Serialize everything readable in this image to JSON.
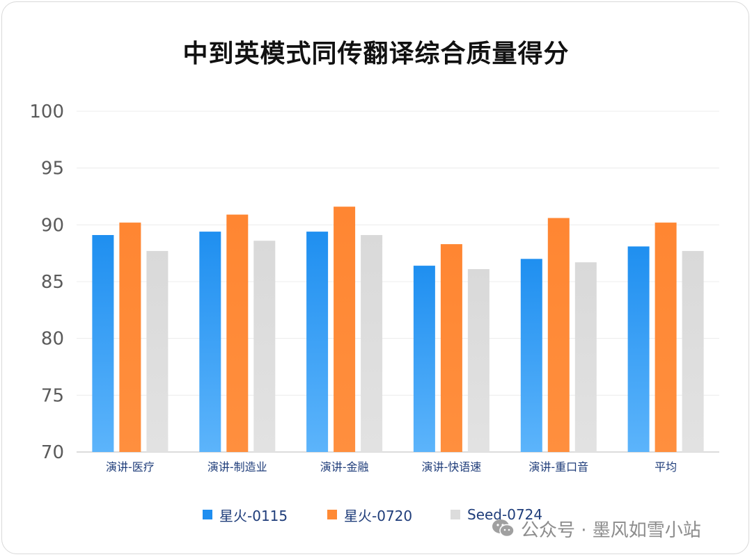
{
  "chart_data": {
    "type": "bar",
    "title": "中到英模式同传翻译综合质量得分",
    "categories": [
      "演讲-医疗",
      "演讲-制造业",
      "演讲-金融",
      "演讲-快语速",
      "演讲-重口音",
      "平均"
    ],
    "series": [
      {
        "name": "星火-0115",
        "color": "#1e8ef0",
        "values": [
          89.1,
          89.4,
          89.4,
          86.4,
          87.0,
          88.1
        ]
      },
      {
        "name": "星火-0720",
        "color": "#ff8a35",
        "values": [
          90.2,
          90.9,
          91.6,
          88.3,
          90.6,
          90.2
        ]
      },
      {
        "name": "Seed-0724",
        "color": "#dcdcdc",
        "values": [
          87.7,
          88.6,
          89.1,
          86.1,
          86.7,
          87.7
        ]
      }
    ],
    "yticks": [
      "70",
      "75",
      "80",
      "85",
      "90",
      "95",
      "100"
    ],
    "ylim": [
      70,
      100
    ],
    "grid": true,
    "legend_position": "bottom"
  },
  "watermark": {
    "text": "公众号 · 墨风如雪小站",
    "icon": "wechat-icon"
  }
}
